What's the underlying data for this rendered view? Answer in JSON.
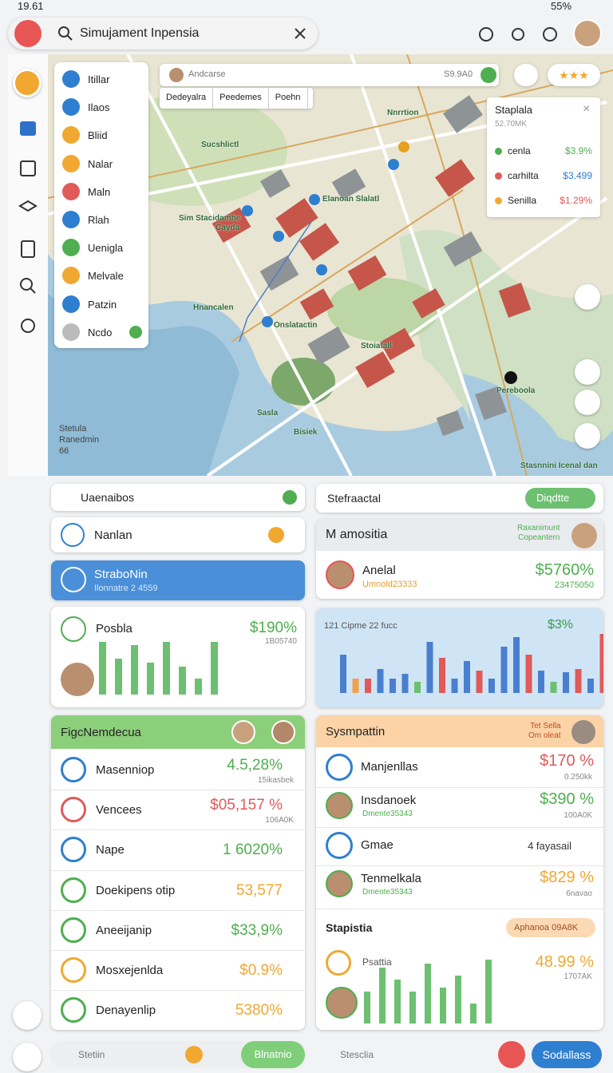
{
  "status": {
    "time": "19.61",
    "battery": "55%"
  },
  "search": {
    "query": "Simujament Inpensia"
  },
  "layers": [
    "Itillar",
    "Ilaos",
    "Bliid",
    "Nalar",
    "Maln",
    "Rlah",
    "Uenigla",
    "Melvale",
    "Patzin",
    "Ncdo"
  ],
  "map": {
    "search_placeholder": "Andcarse",
    "search_value": "S9.9A0",
    "tabs": [
      "Dedeyalra",
      "Peedemes",
      "Poehn"
    ],
    "labels": [
      "Sucshlictl",
      "Nnrrtion",
      "Sim Stacidamhe",
      "Cayda",
      "Elanoan Slalatl",
      "Hnancalen",
      "Onslatactin",
      "Stoiatall",
      "Pereboola",
      "Bisiek",
      "Sasla",
      "Stasnnini Icenal dan"
    ],
    "corner_note": "Stetula\nRanedmin\n66"
  },
  "legend": {
    "title": "Staplala",
    "subtitle": "52.70MK",
    "items": [
      {
        "name": "cenla",
        "value": "$3.9%"
      },
      {
        "name": "carhilta",
        "value": "$3.499"
      },
      {
        "name": "Senilla",
        "value": "$1.29%"
      }
    ]
  },
  "left": {
    "filter": "Uaenaibos",
    "nav": "Nanlan",
    "selected": {
      "title": "StraboNin",
      "subtitle": "Ilonnatre 2 4559"
    },
    "chart": {
      "title": "Posbla",
      "value": "$190%",
      "subtitle": "1B05740",
      "bars": [
        66,
        45,
        62,
        40,
        66,
        35,
        20,
        66
      ]
    },
    "list": {
      "title": "FigcNemdecua",
      "rows": [
        {
          "name": "Masenniop",
          "value": "4.5,28%",
          "sub": "15ikasbek"
        },
        {
          "name": "Vencees",
          "value": "$05,157 %",
          "sub": "106A0K"
        },
        {
          "name": "Nape",
          "value": "1 6020%"
        },
        {
          "name": "Doekipens otip",
          "value": "53,577"
        },
        {
          "name": "Aneeijanip",
          "value": "$33,9%"
        },
        {
          "name": "Mosxejenlda",
          "value": "$0.9%"
        },
        {
          "name": "Denayenlip",
          "value": "5380%"
        }
      ]
    }
  },
  "right": {
    "header": {
      "title": "Stefraactal",
      "button": "Diqdtte"
    },
    "profile": {
      "title": "M amositia",
      "note": "Raxanimunt\nCopeantern",
      "name": "Anelal",
      "id": "Umnold23333",
      "value": "$5760%",
      "subtitle": "23475050"
    },
    "chart": {
      "title": "121 Cipme 22 fucc",
      "value": "$3%",
      "bars": [
        {
          "value": 48,
          "color": "#4a7fd0"
        },
        {
          "value": 18,
          "color": "#f0a050"
        },
        {
          "value": 18,
          "color": "#e05a5a"
        },
        {
          "value": 30,
          "color": "#4a7fd0"
        },
        {
          "value": 18,
          "color": "#4a7fd0"
        },
        {
          "value": 24,
          "color": "#4a7fd0"
        },
        {
          "value": 14,
          "color": "#6cc070"
        },
        {
          "value": 64,
          "color": "#4a7fd0"
        },
        {
          "value": 44,
          "color": "#e05a5a"
        },
        {
          "value": 18,
          "color": "#4a7fd0"
        },
        {
          "value": 40,
          "color": "#4a7fd0"
        },
        {
          "value": 28,
          "color": "#e05a5a"
        },
        {
          "value": 18,
          "color": "#4a7fd0"
        },
        {
          "value": 58,
          "color": "#4a7fd0"
        },
        {
          "value": 70,
          "color": "#4a7fd0"
        },
        {
          "value": 48,
          "color": "#e05a5a"
        },
        {
          "value": 28,
          "color": "#4a7fd0"
        },
        {
          "value": 14,
          "color": "#6cc070"
        },
        {
          "value": 26,
          "color": "#4a7fd0"
        },
        {
          "value": 30,
          "color": "#e05a5a"
        },
        {
          "value": 18,
          "color": "#4a7fd0"
        },
        {
          "value": 74,
          "color": "#e05a5a"
        }
      ]
    },
    "list": {
      "title": "Sysmpattin",
      "note": "Tet Sella\nOm oleat",
      "rows": [
        {
          "name": "Manjenllas",
          "value": "$170 %",
          "sub": "0.250kk"
        },
        {
          "name": "Insdanoek",
          "id": "Dmente35343",
          "value": "$390 %",
          "sub": "100A0K"
        },
        {
          "name": "Gmae",
          "value": "4 fayasail"
        },
        {
          "name": "Tenmelkala",
          "id": "Dmente35343",
          "value": "$829 %",
          "sub": "6navao"
        }
      ],
      "section": {
        "title": "Stapistia",
        "chip": "Aphanoa 09A8K"
      },
      "chart": {
        "title": "Psattia",
        "value": "48.99 %",
        "subtitle": "1707AK",
        "bars": [
          40,
          70,
          55,
          40,
          75,
          45,
          60,
          25,
          80
        ]
      }
    }
  },
  "bottom": {
    "search": "Stetiin",
    "action": "Blnatnio",
    "link": "Stesclia",
    "primary": "Sodallass"
  }
}
